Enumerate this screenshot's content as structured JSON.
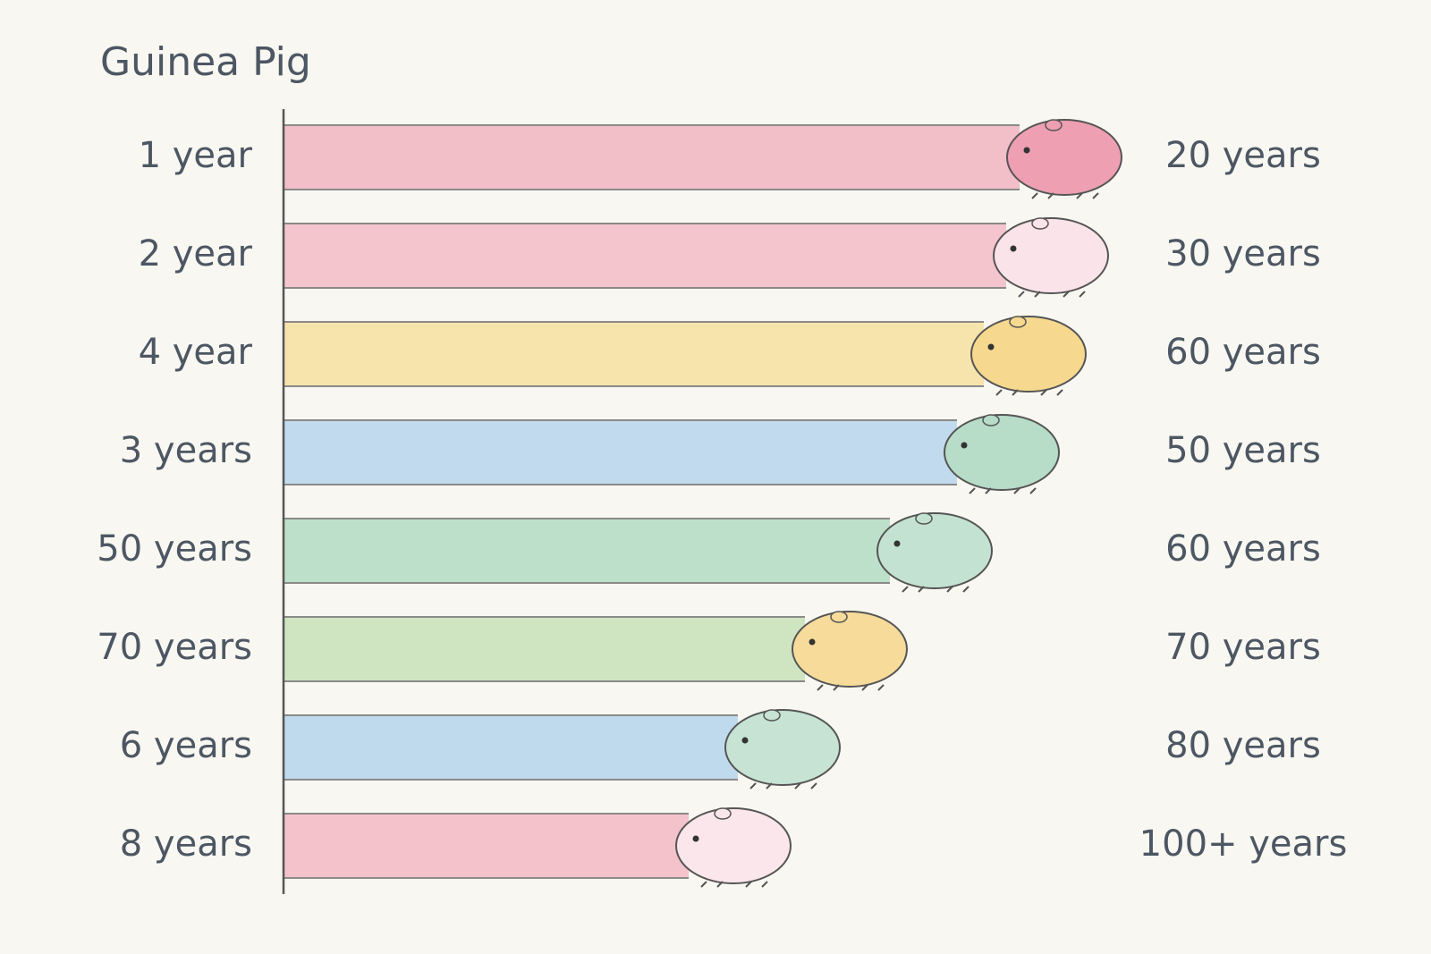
{
  "header": {
    "title": "Guinea Pig"
  },
  "rows": [
    {
      "left": "1 year",
      "right": "20 years"
    },
    {
      "left": "2 year",
      "right": "30 years"
    },
    {
      "left": "4 year",
      "right": "60 years"
    },
    {
      "left": "3 years",
      "right": "50 years"
    },
    {
      "left": "50 years",
      "right": "60 years"
    },
    {
      "left": "70 years",
      "right": "70 years"
    },
    {
      "left": "6 years",
      "right": "80 years"
    },
    {
      "left": "8 years",
      "right": "100+ years"
    }
  ]
}
